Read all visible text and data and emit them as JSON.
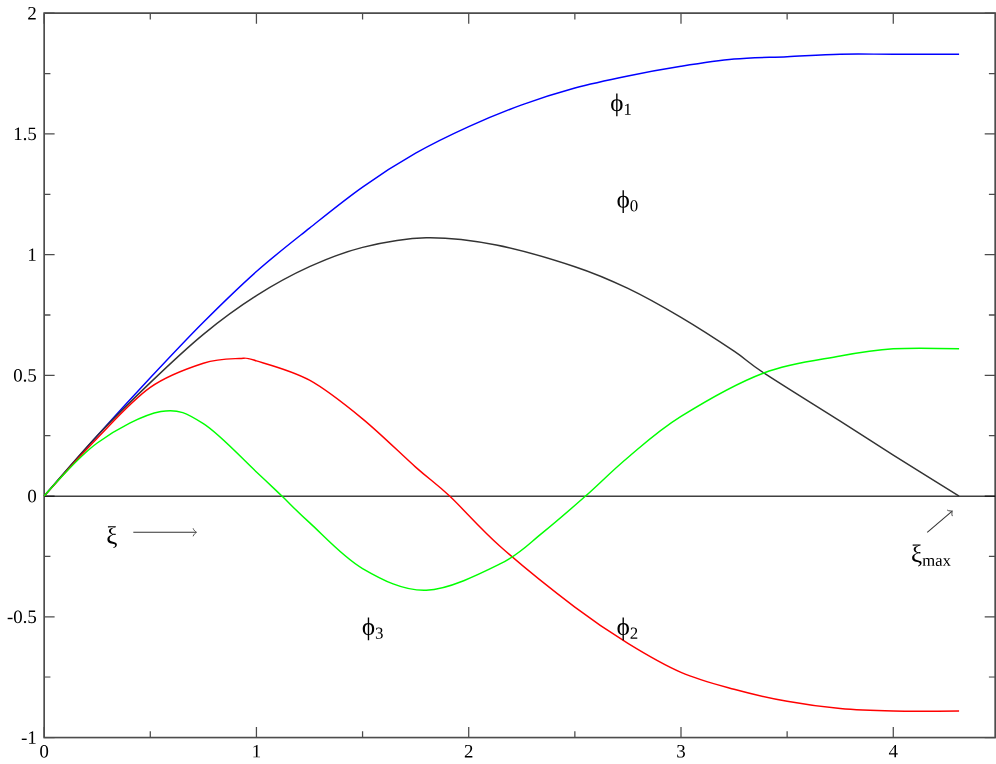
{
  "chart_data": {
    "type": "line",
    "xlim": [
      0,
      4.48
    ],
    "ylim": [
      -1,
      2
    ],
    "xticks": [
      0,
      1,
      2,
      3,
      4
    ],
    "yticks": [
      -1,
      -0.5,
      0,
      0.5,
      1,
      1.5,
      2
    ],
    "grid": false,
    "legend": false,
    "marker": "none",
    "line_style": "solid",
    "series": [
      {
        "name": "ϕ$_{1}$",
        "color": "#0000ff",
        "x": [
          0,
          0.25,
          0.5,
          0.75,
          1,
          1.25,
          1.5,
          1.75,
          2,
          2.25,
          2.5,
          2.75,
          3,
          3.25,
          3.5,
          3.75,
          4,
          4.31
        ],
        "values": [
          0,
          0.25,
          0.49,
          0.72,
          0.93,
          1.11,
          1.28,
          1.42,
          1.53,
          1.62,
          1.69,
          1.74,
          1.78,
          1.81,
          1.82,
          1.83,
          1.83,
          1.83
        ]
      },
      {
        "name": "ϕ$_{0}$",
        "color": "#333333",
        "x": [
          0,
          0.25,
          0.5,
          0.75,
          1,
          1.25,
          1.5,
          1.8,
          2.13,
          2.5,
          2.75,
          3,
          3.25,
          3.39,
          3.75,
          4,
          4.31
        ],
        "values": [
          0,
          0.25,
          0.47,
          0.67,
          0.83,
          0.95,
          1.03,
          1.07,
          1.04,
          0.95,
          0.86,
          0.74,
          0.6,
          0.51,
          0.31,
          0.17,
          0
        ]
      },
      {
        "name": "ϕ$_{2}$",
        "color": "#ff0000",
        "x": [
          0,
          0.25,
          0.5,
          0.75,
          0.92,
          1,
          1.25,
          1.5,
          1.75,
          1.91,
          2.15,
          2.5,
          2.75,
          3,
          3.25,
          3.5,
          3.75,
          4,
          4.31
        ],
        "values": [
          0,
          0.24,
          0.45,
          0.55,
          0.57,
          0.56,
          0.48,
          0.32,
          0.12,
          0,
          -0.21,
          -0.46,
          -0.61,
          -0.73,
          -0.8,
          -0.85,
          -0.88,
          -0.89,
          -0.89
        ]
      },
      {
        "name": "ϕ$_{3}$",
        "color": "#00ff00",
        "x": [
          0,
          0.25,
          0.55,
          0.75,
          1,
          1.12,
          1.25,
          1.5,
          1.8,
          2.15,
          2.35,
          2.55,
          2.75,
          3,
          3.39,
          3.75,
          4,
          4.31
        ],
        "values": [
          0,
          0.22,
          0.35,
          0.3,
          0.1,
          0,
          -0.11,
          -0.3,
          -0.39,
          -0.28,
          -0.15,
          0,
          0.16,
          0.33,
          0.51,
          0.58,
          0.61,
          0.61
        ]
      }
    ],
    "ref_lines": [
      {
        "axis": "y",
        "value": 0,
        "color": "#000000"
      }
    ],
    "annotations": [
      "ξ",
      {
        "text": "ξ$_{max}$",
        "x": 4.31,
        "y": 0
      }
    ]
  }
}
